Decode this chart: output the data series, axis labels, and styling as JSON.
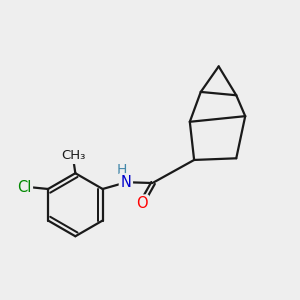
{
  "bg_color": "#eeeeee",
  "bond_color": "#1a1a1a",
  "bond_width": 1.6,
  "atom_colors": {
    "N": "#0000cc",
    "O": "#ff0000",
    "Cl": "#008800",
    "H": "#4488aa",
    "C": "#1a1a1a"
  },
  "font_size": 10.5,
  "figsize": [
    3.0,
    3.0
  ],
  "dpi": 100
}
